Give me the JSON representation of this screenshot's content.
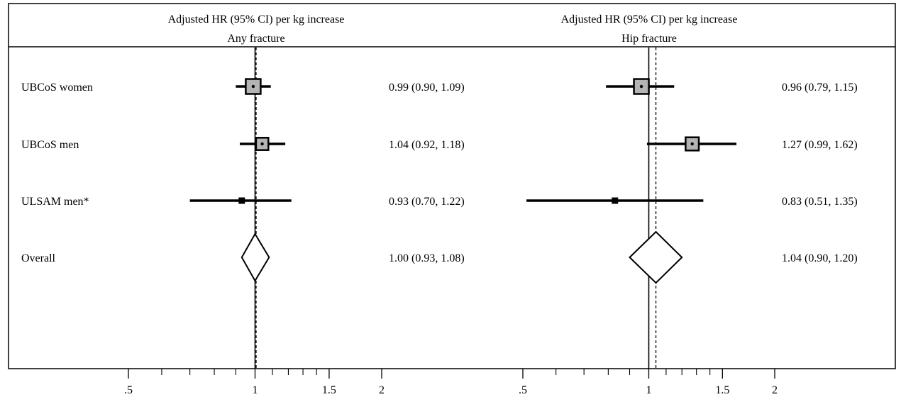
{
  "chart_data": [
    {
      "type": "forest",
      "header": [
        "Adjusted HR (95% CI) per kg increase",
        "Any fracture"
      ],
      "x_scale": "log",
      "xlim": [
        0.45,
        2.7
      ],
      "ticks_major": [
        0.5,
        1,
        1.5,
        2
      ],
      "tick_labels": [
        ".5",
        "1",
        "1.5",
        "2"
      ],
      "ticks_minor": [
        0.6,
        0.7,
        0.8,
        0.9,
        1.1,
        1.2,
        1.3,
        1.4
      ],
      "null_line": 1,
      "overall_line": 1.0,
      "rows": [
        {
          "label": "UBCoS women",
          "hr": 0.99,
          "lo": 0.9,
          "hi": 1.09,
          "ci_text": "0.99 (0.90, 1.09)",
          "weight": 1.0
        },
        {
          "label": "UBCoS men",
          "hr": 1.04,
          "lo": 0.92,
          "hi": 1.18,
          "ci_text": "1.04 (0.92, 1.18)",
          "weight": 0.7
        },
        {
          "label": "ULSAM men*",
          "hr": 0.93,
          "lo": 0.7,
          "hi": 1.22,
          "ci_text": "0.93 (0.70, 1.22)",
          "weight": 0.4
        },
        {
          "label": "Overall",
          "hr": 1.0,
          "lo": 0.93,
          "hi": 1.08,
          "ci_text": "1.00 (0.93, 1.08)",
          "overall": true
        }
      ]
    },
    {
      "type": "forest",
      "header": [
        "Adjusted HR (95% CI) per kg increase",
        "Hip fracture"
      ],
      "x_scale": "log",
      "xlim": [
        0.45,
        2.7
      ],
      "ticks_major": [
        0.5,
        1,
        1.5,
        2
      ],
      "tick_labels": [
        ".5",
        "1",
        "1.5",
        "2"
      ],
      "ticks_minor": [
        0.6,
        0.7,
        0.8,
        0.9,
        1.1,
        1.2,
        1.3,
        1.4
      ],
      "null_line": 1,
      "overall_line": 1.04,
      "rows": [
        {
          "label": "",
          "hr": 0.96,
          "lo": 0.79,
          "hi": 1.15,
          "ci_text": "0.96 (0.79, 1.15)",
          "weight": 1.0
        },
        {
          "label": "",
          "hr": 1.27,
          "lo": 0.99,
          "hi": 1.62,
          "ci_text": "1.27 (0.99, 1.62)",
          "weight": 0.8
        },
        {
          "label": "",
          "hr": 0.83,
          "lo": 0.51,
          "hi": 1.35,
          "ci_text": "0.83 (0.51, 1.35)",
          "weight": 0.4
        },
        {
          "label": "",
          "hr": 1.04,
          "lo": 0.9,
          "hi": 1.2,
          "ci_text": "1.04 (0.90, 1.20)",
          "overall": true
        }
      ]
    }
  ]
}
